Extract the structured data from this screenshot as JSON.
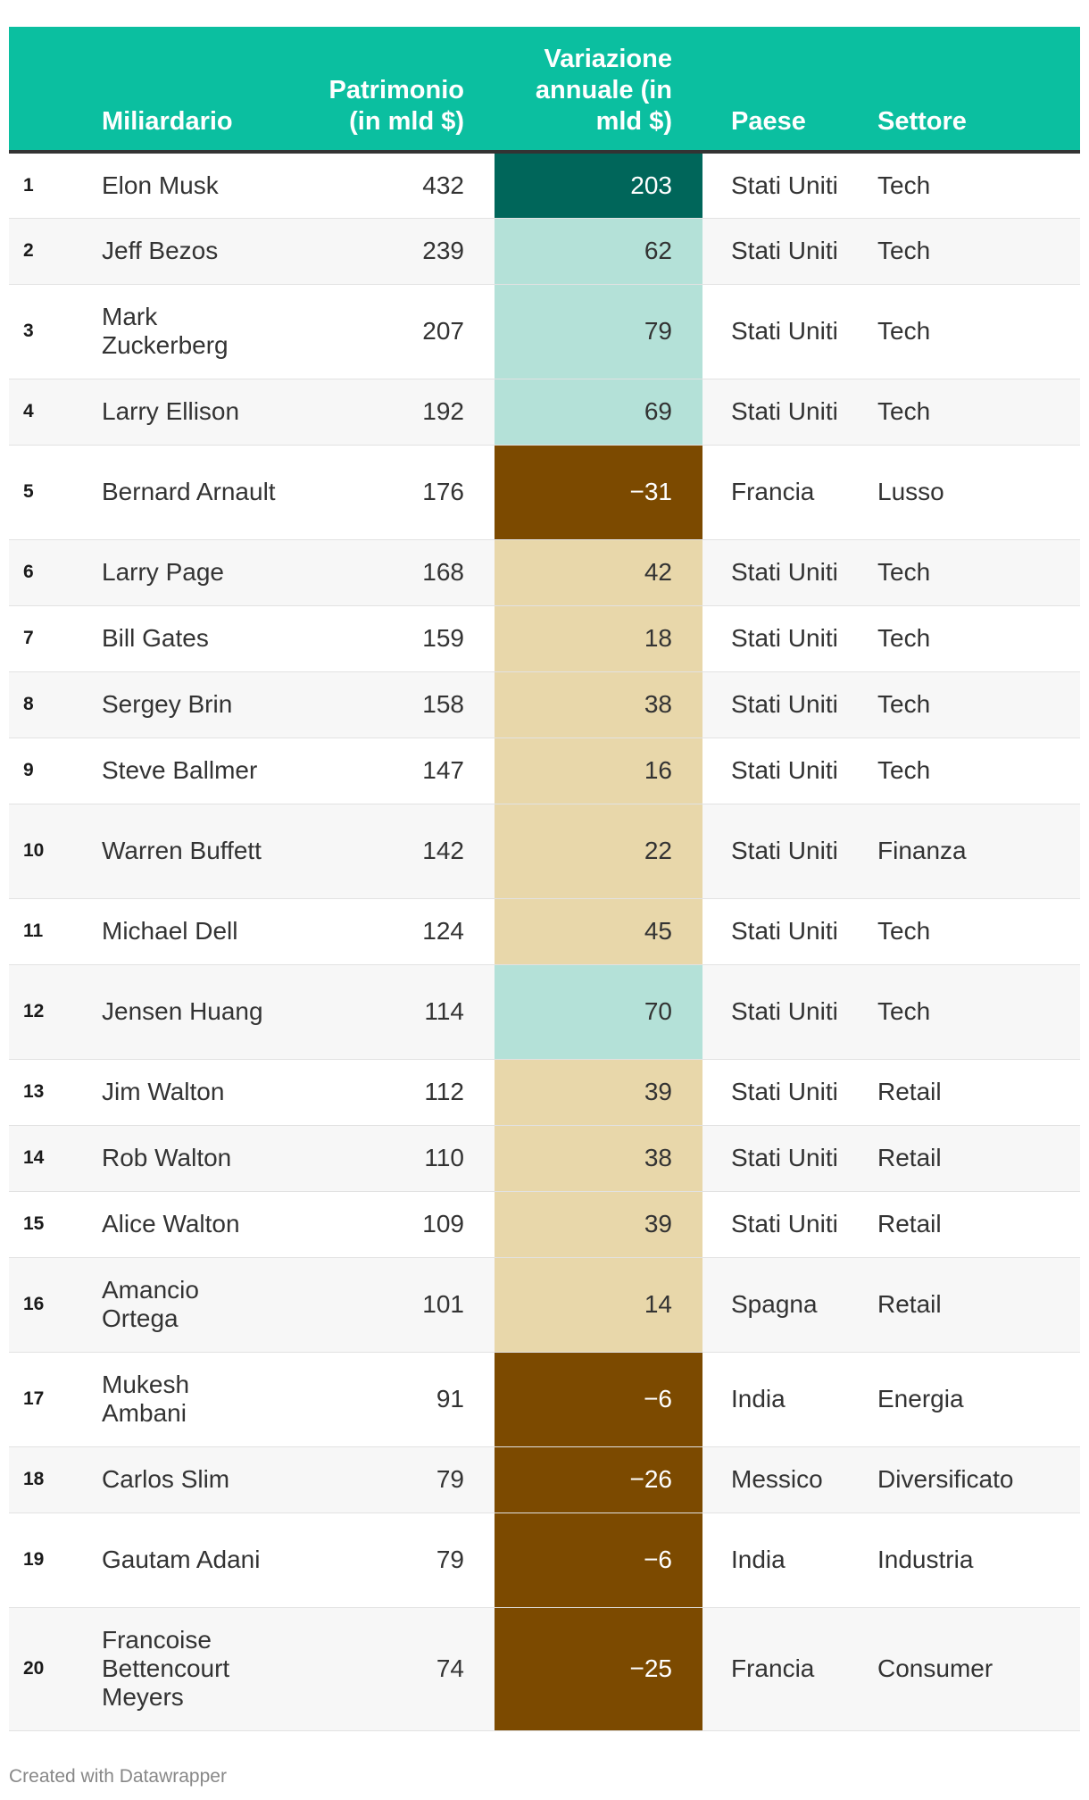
{
  "chart_data": {
    "type": "table",
    "columns": [
      "",
      "Miliardario",
      "Patrimonio (in mld $)",
      "Variazione annuale (in mld $)",
      "Paese",
      "Settore"
    ],
    "rows": [
      {
        "rank": "1",
        "name": "Elon Musk",
        "net_worth": 432,
        "change": "203",
        "change_value": 203,
        "country": "Stati Uniti",
        "sector": "Tech"
      },
      {
        "rank": "2",
        "name": "Jeff Bezos",
        "net_worth": 239,
        "change": "62",
        "change_value": 62,
        "country": "Stati Uniti",
        "sector": "Tech"
      },
      {
        "rank": "3",
        "name": "Mark Zuckerberg",
        "net_worth": 207,
        "change": "79",
        "change_value": 79,
        "country": "Stati Uniti",
        "sector": "Tech"
      },
      {
        "rank": "4",
        "name": "Larry Ellison",
        "net_worth": 192,
        "change": "69",
        "change_value": 69,
        "country": "Stati Uniti",
        "sector": "Tech"
      },
      {
        "rank": "5",
        "name": "Bernard Arnault",
        "net_worth": 176,
        "change": "−31",
        "change_value": -31,
        "country": "Francia",
        "sector": "Lusso"
      },
      {
        "rank": "6",
        "name": "Larry Page",
        "net_worth": 168,
        "change": "42",
        "change_value": 42,
        "country": "Stati Uniti",
        "sector": "Tech"
      },
      {
        "rank": "7",
        "name": "Bill Gates",
        "net_worth": 159,
        "change": "18",
        "change_value": 18,
        "country": "Stati Uniti",
        "sector": "Tech"
      },
      {
        "rank": "8",
        "name": "Sergey Brin",
        "net_worth": 158,
        "change": "38",
        "change_value": 38,
        "country": "Stati Uniti",
        "sector": "Tech"
      },
      {
        "rank": "9",
        "name": "Steve Ballmer",
        "net_worth": 147,
        "change": "16",
        "change_value": 16,
        "country": "Stati Uniti",
        "sector": "Tech"
      },
      {
        "rank": "10",
        "name": "Warren Buffett",
        "net_worth": 142,
        "change": "22",
        "change_value": 22,
        "country": "Stati Uniti",
        "sector": "Finanza"
      },
      {
        "rank": "11",
        "name": "Michael Dell",
        "net_worth": 124,
        "change": "45",
        "change_value": 45,
        "country": "Stati Uniti",
        "sector": "Tech"
      },
      {
        "rank": "12",
        "name": "Jensen Huang",
        "net_worth": 114,
        "change": "70",
        "change_value": 70,
        "country": "Stati Uniti",
        "sector": "Tech"
      },
      {
        "rank": "13",
        "name": "Jim Walton",
        "net_worth": 112,
        "change": "39",
        "change_value": 39,
        "country": "Stati Uniti",
        "sector": "Retail"
      },
      {
        "rank": "14",
        "name": "Rob Walton",
        "net_worth": 110,
        "change": "38",
        "change_value": 38,
        "country": "Stati Uniti",
        "sector": "Retail"
      },
      {
        "rank": "15",
        "name": "Alice Walton",
        "net_worth": 109,
        "change": "39",
        "change_value": 39,
        "country": "Stati Uniti",
        "sector": "Retail"
      },
      {
        "rank": "16",
        "name": "Amancio Ortega",
        "net_worth": 101,
        "change": "14",
        "change_value": 14,
        "country": "Spagna",
        "sector": "Retail"
      },
      {
        "rank": "17",
        "name": "Mukesh Ambani",
        "net_worth": 91,
        "change": "−6",
        "change_value": -6,
        "country": "India",
        "sector": "Energia"
      },
      {
        "rank": "18",
        "name": "Carlos Slim",
        "net_worth": 79,
        "change": "−26",
        "change_value": -26,
        "country": "Messico",
        "sector": "Diversificato"
      },
      {
        "rank": "19",
        "name": "Gautam Adani",
        "net_worth": 79,
        "change": "−6",
        "change_value": -6,
        "country": "India",
        "sector": "Industria"
      },
      {
        "rank": "20",
        "name": "Francoise Bettencourt Meyers",
        "net_worth": 74,
        "change": "−25",
        "change_value": -25,
        "country": "Francia",
        "sector": "Consumer"
      }
    ]
  },
  "colors": {
    "header_bg": "#0bbfa0",
    "change_very_high": "#00665a",
    "change_high": "#b4e1d8",
    "change_medium": "#e8d7aa",
    "change_negative": "#7c4a00"
  },
  "header": {
    "billionaire": "Miliardario",
    "net_worth_line1": "Patrimonio",
    "net_worth_line2": "(in mld $)",
    "change_line1": "Variazione",
    "change_line2": "annuale (in",
    "change_line3": "mld $)",
    "country": "Paese",
    "sector": "Settore"
  },
  "footer": {
    "credit": "Created with Datawrapper"
  }
}
